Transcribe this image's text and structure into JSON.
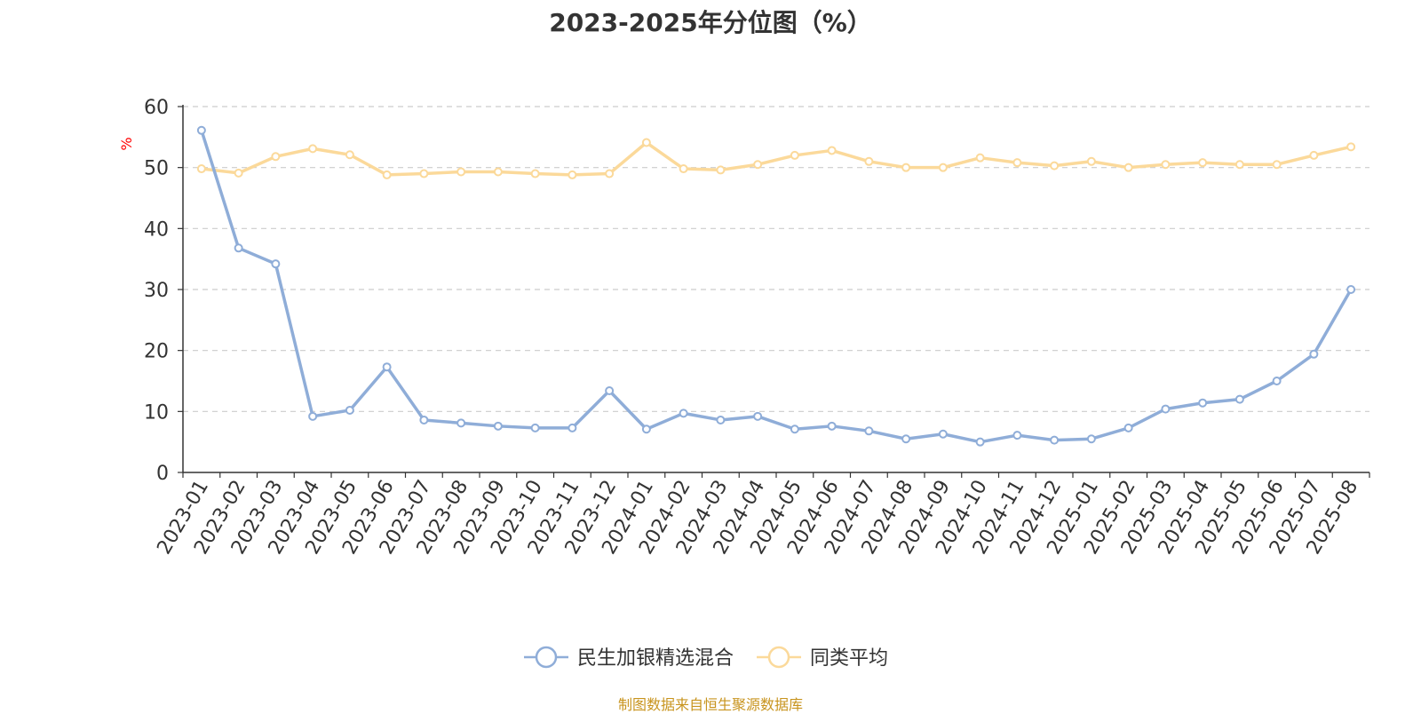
{
  "chart_data": {
    "type": "line",
    "title": "2023-2025年分位图（%）",
    "ylabel": "%",
    "ylim": [
      0,
      60
    ],
    "yticks": [
      0,
      10,
      20,
      30,
      40,
      50,
      60
    ],
    "grid": true,
    "legend_position": "bottom-center",
    "categories": [
      "2023-01",
      "2023-02",
      "2023-03",
      "2023-04",
      "2023-05",
      "2023-06",
      "2023-07",
      "2023-08",
      "2023-09",
      "2023-10",
      "2023-11",
      "2023-12",
      "2024-01",
      "2024-02",
      "2024-03",
      "2024-04",
      "2024-05",
      "2024-06",
      "2024-07",
      "2024-08",
      "2024-09",
      "2024-10",
      "2024-11",
      "2024-12",
      "2025-01",
      "2025-02",
      "2025-03",
      "2025-04",
      "2025-05",
      "2025-06",
      "2025-07",
      "2025-08"
    ],
    "series": [
      {
        "name": "民生加银精选混合",
        "color": "#8fadd8",
        "values": [
          56.1,
          36.8,
          34.2,
          9.2,
          10.2,
          17.3,
          8.6,
          8.1,
          7.6,
          7.3,
          7.3,
          13.4,
          7.1,
          9.7,
          8.6,
          9.2,
          7.1,
          7.6,
          6.8,
          5.5,
          6.3,
          5.0,
          6.1,
          5.3,
          5.5,
          7.3,
          10.4,
          11.4,
          12.0,
          15.0,
          19.4,
          30.0
        ]
      },
      {
        "name": "同类平均",
        "color": "#fbd99a",
        "values": [
          49.8,
          49.1,
          51.8,
          53.1,
          52.1,
          48.8,
          49.0,
          49.3,
          49.3,
          49.0,
          48.8,
          49.0,
          54.1,
          49.8,
          49.6,
          50.5,
          52.0,
          52.8,
          51.0,
          50.0,
          50.0,
          51.6,
          50.8,
          50.3,
          51.0,
          50.0,
          50.5,
          50.8,
          50.5,
          50.5,
          52.0,
          53.4
        ]
      }
    ]
  },
  "source_note": "制图数据来自恒生聚源数据库"
}
